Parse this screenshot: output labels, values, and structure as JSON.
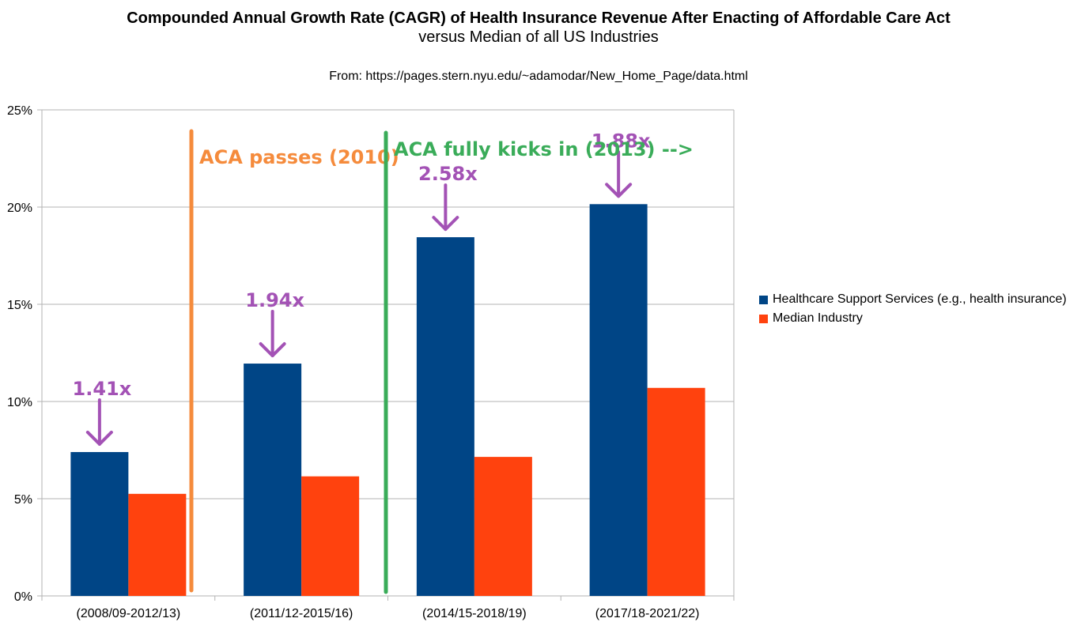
{
  "chart_data": {
    "type": "bar",
    "title": "Compounded Annual Growth Rate (CAGR) of Health Insurance Revenue After Enacting of Affordable Care Act",
    "subtitle": "versus Median of all US Industries",
    "source": "From: https://pages.stern.nyu.edu/~adamodar/New_Home_Page/data.html",
    "categories": [
      "(2008/09-2012/13)",
      "(2011/12-2015/16)",
      "(2014/15-2018/19)",
      "(2017/18-2021/22)"
    ],
    "series": [
      {
        "name": "Healthcare Support Services (e.g., health insurance)",
        "values": [
          7.4,
          11.95,
          18.45,
          20.15
        ],
        "color": "#004586"
      },
      {
        "name": "Median Industry",
        "values": [
          5.25,
          6.15,
          7.15,
          10.7
        ],
        "color": "#ff420e"
      }
    ],
    "ylim": [
      0,
      25
    ],
    "yticks": [
      "0%",
      "5%",
      "10%",
      "15%",
      "20%",
      "25%"
    ],
    "ytick_values": [
      0,
      5,
      10,
      15,
      20,
      25
    ],
    "grid": true,
    "legend_position": "right",
    "ratio_labels": [
      "1.41x",
      "1.94x",
      "2.58x",
      "1.88x"
    ],
    "ratio_color": "#a352b5",
    "annotations": [
      {
        "text": "ACA passes (2010)",
        "color": "#f58b3c"
      },
      {
        "text": "ACA fully kicks in (2013) -->",
        "color": "#3aac59"
      }
    ]
  }
}
